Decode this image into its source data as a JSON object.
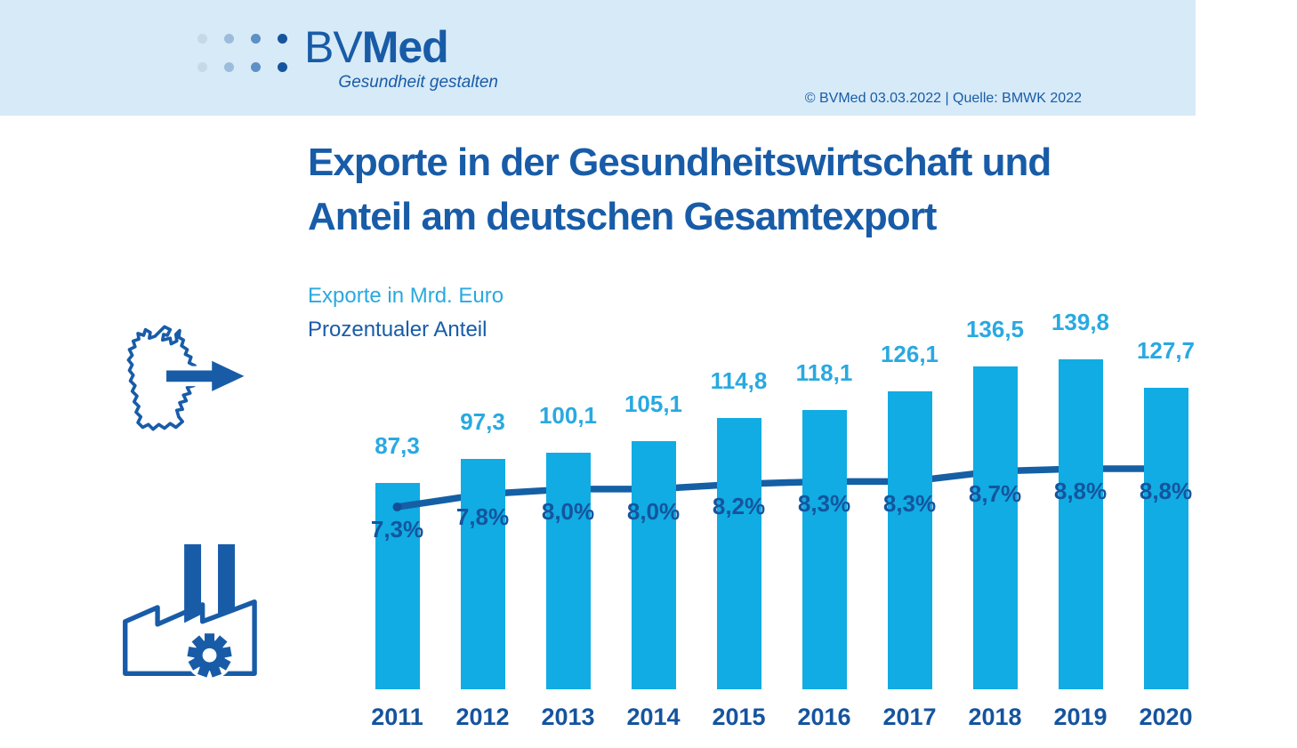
{
  "header": {
    "logo": {
      "name_bv": "BV",
      "name_med": "Med",
      "tagline": "Gesundheit gestalten",
      "dot_colors": [
        "#C7D8E8",
        "#9CBCDC",
        "#5C90C6",
        "#16549E"
      ]
    },
    "credit": "© BVMed 03.03.2022 | Quelle: BMWK 2022"
  },
  "title": {
    "line1": "Exporte in der Gesundheitswirtschaft und",
    "line2": "Anteil am deutschen Gesamtexport"
  },
  "legend": {
    "bars_label": "Exporte in Mrd. Euro",
    "line_label": "Prozentualer Anteil"
  },
  "palette": {
    "header_band": "#D7EAF7",
    "dark_blue": "#185CA8",
    "deep_blue_text": "#15549E",
    "bar_cyan": "#10ACE3",
    "cyan_text": "#29A9E0",
    "trend_line": "#155FA5",
    "trend_marker": "#124F94"
  },
  "chart_data": {
    "type": "bar",
    "title": "Exporte in der Gesundheitswirtschaft und Anteil am deutschen Gesamtexport",
    "categories": [
      "2011",
      "2012",
      "2013",
      "2014",
      "2015",
      "2016",
      "2017",
      "2018",
      "2019",
      "2020"
    ],
    "series": [
      {
        "name": "Exporte in Mrd. Euro",
        "type": "bar",
        "values": [
          87.3,
          97.3,
          100.1,
          105.1,
          114.8,
          118.1,
          126.1,
          136.5,
          139.8,
          127.7
        ],
        "labels": [
          "87,3",
          "97,3",
          "100,1",
          "105,1",
          "114,8",
          "118,1",
          "126,1",
          "136,5",
          "139,8",
          "127,7"
        ],
        "color": "#10ACE3"
      },
      {
        "name": "Prozentualer Anteil",
        "type": "line",
        "values": [
          7.3,
          7.8,
          8.0,
          8.0,
          8.2,
          8.3,
          8.3,
          8.7,
          8.8,
          8.8
        ],
        "labels": [
          "7,3%",
          "7,8%",
          "8,0%",
          "8,0%",
          "8,2%",
          "8,3%",
          "8,3%",
          "8,7%",
          "8,8%",
          "8,8%"
        ],
        "color": "#155FA5"
      }
    ],
    "xlabel": "",
    "ylabel": "Exporte in Mrd. Euro",
    "y2label": "Prozentualer Anteil",
    "ylim": [
      0,
      160
    ],
    "y2lim": [
      7.0,
      9.0
    ],
    "grid": false,
    "legend_position": "top-left",
    "value_labels": true
  }
}
